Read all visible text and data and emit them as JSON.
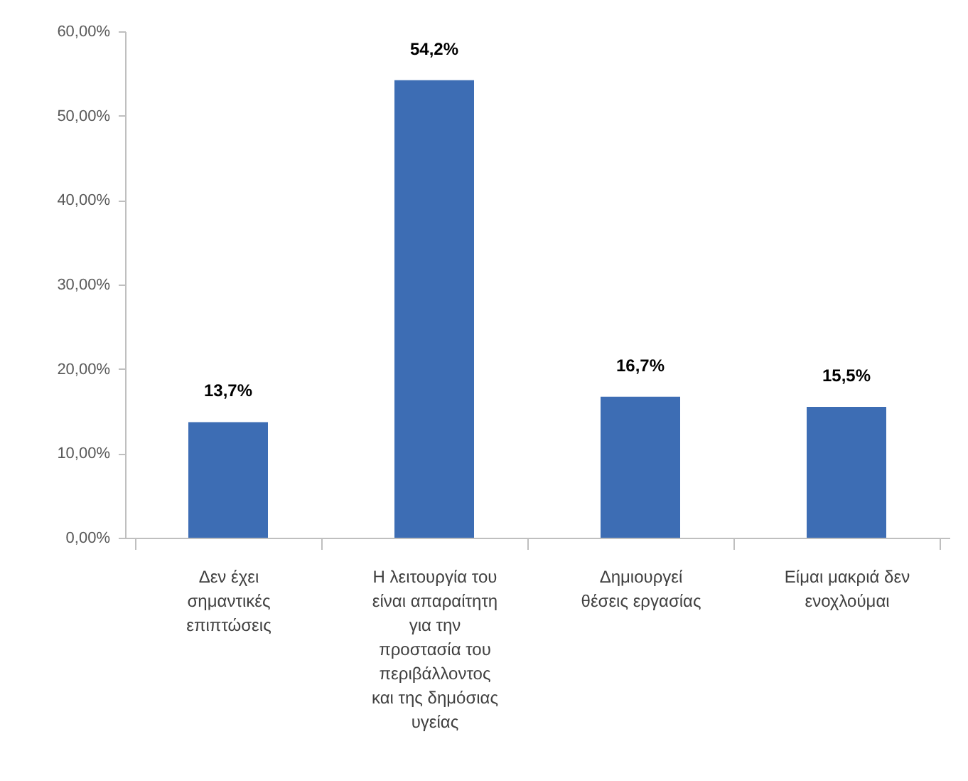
{
  "chart_data": {
    "type": "bar",
    "categories": [
      "Δεν έχει σημαντικές επιπτώσεις",
      "Η λειτουργία του είναι απαραίτητη για την προστασία του περιβάλλοντος και της δημόσιας υγείας",
      "Δημιουργεί θέσεις εργασίας",
      "Είμαι μακριά δεν ενοχλούμαι"
    ],
    "values": [
      13.7,
      54.2,
      16.7,
      15.5
    ],
    "color": "#3d6db4",
    "value_labels": [
      "13,7%",
      "54,2%",
      "16,7%",
      "15,5%"
    ],
    "ylim": [
      0,
      60
    ],
    "yticks": [
      {
        "value": 0,
        "label": "0,00%"
      },
      {
        "value": 10,
        "label": "10,00%"
      },
      {
        "value": 20,
        "label": "20,00%"
      },
      {
        "value": 30,
        "label": "30,00%"
      },
      {
        "value": 40,
        "label": "40,00%"
      },
      {
        "value": 50,
        "label": "50,00%"
      },
      {
        "value": 60,
        "label": "60,00%"
      }
    ]
  }
}
